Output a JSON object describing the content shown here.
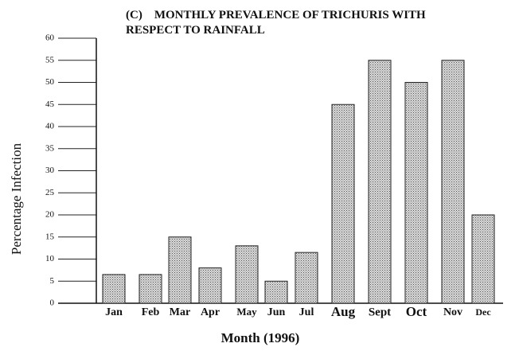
{
  "chart_data": {
    "type": "bar",
    "title": "(C)    MONTHLY PREVALENCE OF TRICHURIS WITH RESPECT TO RAINFALL",
    "x_label": "Month (1996)",
    "y_label": "Percentage Infection",
    "categories": [
      "Jan",
      "Feb",
      "Mar",
      "Apr",
      "May",
      "Jun",
      "Jul",
      "Aug",
      "Sept",
      "Oct",
      "Nov",
      "Dec"
    ],
    "values": [
      6.5,
      6.5,
      15,
      8,
      13,
      5,
      11.5,
      45,
      55,
      50,
      55,
      20
    ],
    "color": "#c8c8c8",
    "ylim": [
      0,
      60
    ],
    "yticks": [
      0,
      5,
      10,
      15,
      20,
      25,
      30,
      35,
      40,
      45,
      50,
      55,
      60
    ]
  }
}
